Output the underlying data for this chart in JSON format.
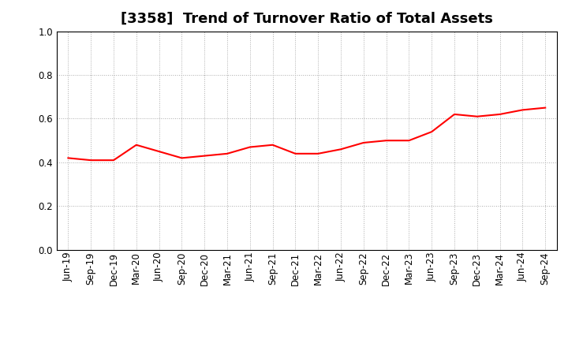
{
  "title": "[3358]  Trend of Turnover Ratio of Total Assets",
  "labels": [
    "Jun-19",
    "Sep-19",
    "Dec-19",
    "Mar-20",
    "Jun-20",
    "Sep-20",
    "Dec-20",
    "Mar-21",
    "Jun-21",
    "Sep-21",
    "Dec-21",
    "Mar-22",
    "Jun-22",
    "Sep-22",
    "Dec-22",
    "Mar-23",
    "Jun-23",
    "Sep-23",
    "Dec-23",
    "Mar-24",
    "Jun-24",
    "Sep-24"
  ],
  "values": [
    0.42,
    0.41,
    0.41,
    0.48,
    0.45,
    0.42,
    0.43,
    0.44,
    0.47,
    0.48,
    0.44,
    0.44,
    0.46,
    0.49,
    0.5,
    0.5,
    0.54,
    0.62,
    0.61,
    0.62,
    0.64,
    0.65
  ],
  "line_color": "#FF0000",
  "line_width": 1.5,
  "ylim": [
    0.0,
    1.0
  ],
  "yticks": [
    0.0,
    0.2,
    0.4,
    0.6,
    0.8,
    1.0
  ],
  "background_color": "#FFFFFF",
  "grid_color": "#AAAAAA",
  "title_fontsize": 13,
  "tick_fontsize": 8.5
}
